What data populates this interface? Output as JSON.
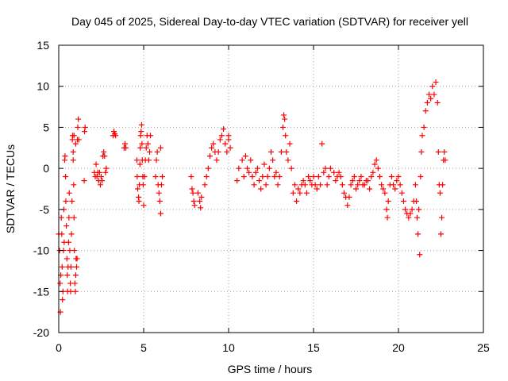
{
  "chart_data": {
    "type": "scatter",
    "title": "Day 045 of 2025, Sidereal Day-to-day VTEC variation (SDTVAR) for receiver yell",
    "xlabel": "GPS time / hours",
    "ylabel": "SDTVAR / TECUs",
    "xlim": [
      0,
      25
    ],
    "ylim": [
      -20,
      15
    ],
    "xticks": [
      0,
      5,
      10,
      15,
      20,
      25
    ],
    "yticks": [
      -20,
      -15,
      -10,
      -5,
      0,
      5,
      10,
      15
    ],
    "xtick_labels": [
      "0",
      "5",
      "10",
      "15",
      "20",
      "25"
    ],
    "ytick_labels": [
      "-20",
      "-15",
      "-10",
      "-5",
      "0",
      "5",
      "10",
      "15"
    ],
    "grid": true,
    "marker": "+",
    "series": [
      {
        "name": "SDTVAR",
        "color": "#ff0000",
        "points": [
          [
            0.0,
            -8
          ],
          [
            0.05,
            -10
          ],
          [
            0.08,
            -14
          ],
          [
            0.1,
            -17.5
          ],
          [
            0.12,
            -13
          ],
          [
            0.15,
            -6
          ],
          [
            0.18,
            -8
          ],
          [
            0.2,
            -12
          ],
          [
            0.22,
            -16
          ],
          [
            0.25,
            -15
          ],
          [
            0.28,
            -10
          ],
          [
            0.3,
            -5
          ],
          [
            0.32,
            -9
          ],
          [
            0.35,
            1
          ],
          [
            0.37,
            1.5
          ],
          [
            0.4,
            -1
          ],
          [
            0.42,
            -4
          ],
          [
            0.45,
            -7
          ],
          [
            0.48,
            -11
          ],
          [
            0.5,
            -13
          ],
          [
            0.52,
            -15
          ],
          [
            0.55,
            -12
          ],
          [
            0.58,
            -9
          ],
          [
            0.6,
            -6
          ],
          [
            0.62,
            -3
          ],
          [
            0.65,
            -10
          ],
          [
            0.68,
            -14
          ],
          [
            0.7,
            -15
          ],
          [
            0.72,
            -12
          ],
          [
            0.75,
            -8
          ],
          [
            0.78,
            -4
          ],
          [
            0.8,
            3.5
          ],
          [
            0.82,
            4
          ],
          [
            0.85,
            1
          ],
          [
            0.88,
            -2
          ],
          [
            0.9,
            -6
          ],
          [
            0.92,
            -10
          ],
          [
            0.95,
            -14
          ],
          [
            0.98,
            -15
          ],
          [
            1.0,
            -13
          ],
          [
            1.02,
            -11
          ],
          [
            1.05,
            -12
          ],
          [
            1.08,
            -11
          ],
          [
            1.1,
            3.5
          ],
          [
            1.12,
            5
          ],
          [
            1.15,
            6
          ],
          [
            1.18,
            3.5
          ],
          [
            1.0,
            3
          ],
          [
            0.9,
            4
          ],
          [
            0.85,
            2
          ],
          [
            1.5,
            -1.5
          ],
          [
            1.52,
            4.5
          ],
          [
            1.55,
            5
          ],
          [
            2.1,
            -0.5
          ],
          [
            2.15,
            -1
          ],
          [
            2.2,
            0.5
          ],
          [
            2.25,
            -1
          ],
          [
            2.3,
            -0.5
          ],
          [
            2.35,
            -1.5
          ],
          [
            2.4,
            -0.5
          ],
          [
            2.45,
            -2
          ],
          [
            2.5,
            -1
          ],
          [
            2.55,
            -1.5
          ],
          [
            2.6,
            1.5
          ],
          [
            2.65,
            2
          ],
          [
            2.7,
            1.5
          ],
          [
            2.75,
            -0.5
          ],
          [
            2.8,
            0
          ],
          [
            3.2,
            4
          ],
          [
            3.25,
            4.5
          ],
          [
            3.3,
            4.2
          ],
          [
            3.35,
            4
          ],
          [
            3.85,
            2.5
          ],
          [
            3.9,
            3
          ],
          [
            3.95,
            2.5
          ],
          [
            4.6,
            1
          ],
          [
            4.62,
            -1
          ],
          [
            4.65,
            -2.5
          ],
          [
            4.7,
            -3.5
          ],
          [
            4.72,
            -4
          ],
          [
            4.75,
            -2
          ],
          [
            4.78,
            0.5
          ],
          [
            4.8,
            2.5
          ],
          [
            4.82,
            4
          ],
          [
            4.85,
            4.5
          ],
          [
            4.88,
            5.3
          ],
          [
            4.9,
            3
          ],
          [
            4.92,
            1
          ],
          [
            4.95,
            -1
          ],
          [
            4.97,
            -2
          ],
          [
            5.0,
            -4.5
          ],
          [
            5.05,
            -1
          ],
          [
            5.1,
            1
          ],
          [
            5.15,
            2.5
          ],
          [
            5.2,
            4
          ],
          [
            5.25,
            3
          ],
          [
            5.3,
            1
          ],
          [
            5.35,
            2
          ],
          [
            5.4,
            4
          ],
          [
            5.7,
            -1
          ],
          [
            5.75,
            1
          ],
          [
            5.8,
            2
          ],
          [
            5.85,
            -2
          ],
          [
            5.9,
            -3
          ],
          [
            5.95,
            -4
          ],
          [
            6.0,
            -5.5
          ],
          [
            6.05,
            -2
          ],
          [
            6.1,
            -1
          ],
          [
            6.0,
            2.5
          ],
          [
            7.8,
            -1
          ],
          [
            7.85,
            -2.5
          ],
          [
            7.9,
            -3
          ],
          [
            7.95,
            -4
          ],
          [
            8.0,
            -4.5
          ],
          [
            8.2,
            -3
          ],
          [
            8.3,
            -4
          ],
          [
            8.35,
            -4.8
          ],
          [
            8.4,
            -3.5
          ],
          [
            8.6,
            -2
          ],
          [
            8.7,
            -1
          ],
          [
            8.8,
            0
          ],
          [
            8.9,
            1.5
          ],
          [
            9.0,
            2.5
          ],
          [
            9.1,
            3
          ],
          [
            9.2,
            2
          ],
          [
            9.3,
            1
          ],
          [
            9.4,
            2
          ],
          [
            9.5,
            3.5
          ],
          [
            9.6,
            4
          ],
          [
            9.7,
            4.8
          ],
          [
            9.8,
            3
          ],
          [
            9.9,
            2
          ],
          [
            10.0,
            3.5
          ],
          [
            10.1,
            2.5
          ],
          [
            10.0,
            4
          ],
          [
            10.5,
            -1.5
          ],
          [
            10.6,
            0
          ],
          [
            10.8,
            1
          ],
          [
            10.9,
            -1
          ],
          [
            11.0,
            1.5
          ],
          [
            11.1,
            0
          ],
          [
            11.2,
            -0.5
          ],
          [
            11.3,
            1
          ],
          [
            11.4,
            -1
          ],
          [
            11.5,
            -2
          ],
          [
            11.6,
            -0.5
          ],
          [
            11.7,
            0
          ],
          [
            11.8,
            -1.5
          ],
          [
            11.9,
            -2.5
          ],
          [
            12.0,
            -1
          ],
          [
            12.1,
            0.5
          ],
          [
            12.2,
            -2
          ],
          [
            12.3,
            -1
          ],
          [
            12.4,
            0
          ],
          [
            12.5,
            2
          ],
          [
            12.6,
            1
          ],
          [
            12.7,
            -1
          ],
          [
            12.8,
            -0.5
          ],
          [
            12.9,
            -2
          ],
          [
            13.0,
            -1
          ],
          [
            13.1,
            2
          ],
          [
            13.2,
            5
          ],
          [
            13.25,
            6.5
          ],
          [
            13.3,
            6
          ],
          [
            13.35,
            4
          ],
          [
            13.4,
            2
          ],
          [
            13.5,
            1
          ],
          [
            13.6,
            3
          ],
          [
            13.7,
            0
          ],
          [
            13.8,
            -3
          ],
          [
            13.9,
            -2
          ],
          [
            14.0,
            -4
          ],
          [
            14.1,
            -2.5
          ],
          [
            14.2,
            -3
          ],
          [
            14.3,
            -2
          ],
          [
            14.4,
            -1.5
          ],
          [
            14.5,
            -2
          ],
          [
            14.6,
            -3
          ],
          [
            14.7,
            -1
          ],
          [
            14.8,
            -1.5
          ],
          [
            14.9,
            -2
          ],
          [
            15.0,
            -1
          ],
          [
            15.1,
            -2
          ],
          [
            15.2,
            -2.5
          ],
          [
            15.3,
            -1
          ],
          [
            15.4,
            -2
          ],
          [
            15.5,
            3
          ],
          [
            15.6,
            -0.5
          ],
          [
            15.7,
            0
          ],
          [
            15.8,
            -2
          ],
          [
            15.9,
            -1
          ],
          [
            16.0,
            0
          ],
          [
            16.2,
            -0.5
          ],
          [
            16.3,
            -1.5
          ],
          [
            16.4,
            -1
          ],
          [
            16.5,
            -0.5
          ],
          [
            16.6,
            -1
          ],
          [
            16.7,
            -2
          ],
          [
            16.8,
            -3
          ],
          [
            16.9,
            -3.5
          ],
          [
            17.0,
            -4.5
          ],
          [
            17.1,
            -3.5
          ],
          [
            17.2,
            -2
          ],
          [
            17.3,
            -1.5
          ],
          [
            17.4,
            -1
          ],
          [
            17.5,
            -2.5
          ],
          [
            17.6,
            -2
          ],
          [
            17.7,
            -1.5
          ],
          [
            17.8,
            -1
          ],
          [
            17.9,
            -2
          ],
          [
            18.0,
            -2
          ],
          [
            18.1,
            -1.5
          ],
          [
            18.2,
            -1.5
          ],
          [
            18.3,
            -2.5
          ],
          [
            18.4,
            -1
          ],
          [
            18.5,
            -0.5
          ],
          [
            18.6,
            0.5
          ],
          [
            18.7,
            1
          ],
          [
            18.8,
            0
          ],
          [
            18.9,
            -1
          ],
          [
            19.0,
            -2
          ],
          [
            19.1,
            -2.5
          ],
          [
            19.2,
            -3
          ],
          [
            19.3,
            -5
          ],
          [
            19.35,
            -6
          ],
          [
            19.4,
            -4
          ],
          [
            19.5,
            -2
          ],
          [
            19.6,
            -1
          ],
          [
            19.7,
            -2
          ],
          [
            19.8,
            -2.5
          ],
          [
            19.9,
            -1.5
          ],
          [
            20.0,
            -1
          ],
          [
            20.1,
            -2
          ],
          [
            20.2,
            -3
          ],
          [
            20.3,
            -4
          ],
          [
            20.4,
            -5
          ],
          [
            20.5,
            -5.5
          ],
          [
            20.6,
            -6
          ],
          [
            20.7,
            -5.5
          ],
          [
            20.8,
            -5
          ],
          [
            20.9,
            -4
          ],
          [
            21.0,
            -2
          ],
          [
            21.05,
            -4
          ],
          [
            21.1,
            -6
          ],
          [
            21.15,
            -8
          ],
          [
            21.2,
            -5
          ],
          [
            21.25,
            -10.5
          ],
          [
            21.3,
            -1
          ],
          [
            21.35,
            2
          ],
          [
            21.4,
            4
          ],
          [
            21.5,
            5
          ],
          [
            21.6,
            7
          ],
          [
            21.7,
            8
          ],
          [
            21.8,
            9
          ],
          [
            21.9,
            8.5
          ],
          [
            22.0,
            10
          ],
          [
            22.1,
            9
          ],
          [
            22.2,
            10.5
          ],
          [
            22.3,
            8
          ],
          [
            22.35,
            2
          ],
          [
            22.4,
            -2
          ],
          [
            22.45,
            -3
          ],
          [
            22.5,
            -8
          ],
          [
            22.55,
            -6
          ],
          [
            22.6,
            -2
          ],
          [
            22.65,
            1
          ],
          [
            22.7,
            2
          ],
          [
            22.75,
            1
          ]
        ]
      }
    ]
  }
}
